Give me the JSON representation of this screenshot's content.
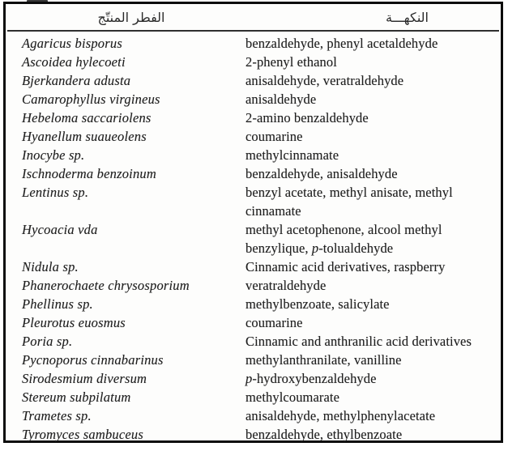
{
  "page": {
    "kind": "scanned table from a printed document"
  },
  "table": {
    "headers": {
      "fungus": "الفطر المنتّج",
      "flavor": "النكهـــة"
    },
    "rows": [
      {
        "species": "Agaricus bisporus",
        "flavor": "benzaldehyde, phenyl acetaldehyde"
      },
      {
        "species": "Ascoidea hylecoeti",
        "flavor": "2-phenyl ethanol"
      },
      {
        "species": "Bjerkandera adusta",
        "flavor": "anisaldehyde, veratraldehyde"
      },
      {
        "species": "Camarophyllus virgineus",
        "flavor": "anisaldehyde"
      },
      {
        "species": "Hebeloma saccariolens",
        "flavor": "2-amino benzaldehyde"
      },
      {
        "species": "Hyanellum suaueolens",
        "flavor": "coumarine"
      },
      {
        "species": "Inocybe sp.",
        "flavor": "methylcinnamate"
      },
      {
        "species": "Ischnoderma benzoinum",
        "flavor": "benzaldehyde, anisaldehyde"
      },
      {
        "species": "Lentinus sp.",
        "flavor": "benzyl acetate, methyl anisate, methyl\ncinnamate"
      },
      {
        "species": "Hycoacia vda",
        "flavor": "methyl acetophenone, alcool methyl\nbenzylique, p-tolualdehyde"
      },
      {
        "species": "Nidula sp.",
        "flavor": "Cinnamic acid derivatives, raspberry"
      },
      {
        "species": "Phanerochaete chrysosporium",
        "flavor": "veratraldehyde"
      },
      {
        "species": "Phellinus sp.",
        "flavor": "methylbenzoate, salicylate"
      },
      {
        "species": "Pleurotus euosmus",
        "flavor": "coumarine"
      },
      {
        "species": "Poria sp.",
        "flavor": "Cinnamic and anthranilic acid derivatives"
      },
      {
        "species": "Pycnoporus cinnabarinus",
        "flavor": "methylanthranilate, vanilline"
      },
      {
        "species": "Sirodesmium diversum",
        "flavor": "p-hydroxybenzaldehyde"
      },
      {
        "species": "Stereum subpilatum",
        "flavor": "methylcoumarate"
      },
      {
        "species": "Trametes sp.",
        "flavor": "anisaldehyde, methylphenylacetate"
      },
      {
        "species": "Tyromyces sambuceus",
        "flavor": "benzaldehyde, ethylbenzoate"
      }
    ]
  }
}
